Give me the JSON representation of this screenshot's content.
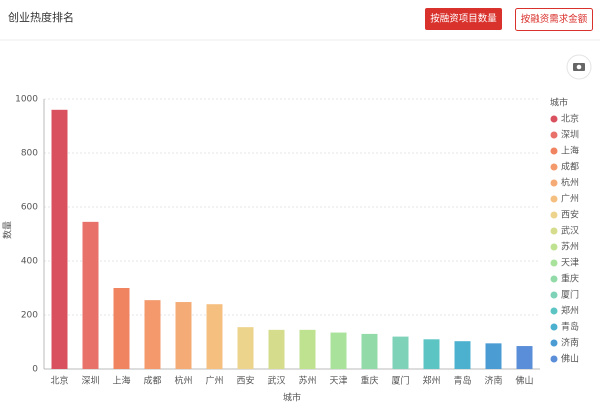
{
  "header": {
    "title": "创业热度排名",
    "buttons": [
      "按融资项目数量",
      "按融资需求金额"
    ]
  },
  "chart_data": {
    "type": "bar",
    "xlabel": "城市",
    "ylabel": "数量",
    "legend_title": "城市",
    "categories": [
      "北京",
      "深圳",
      "上海",
      "成都",
      "杭州",
      "广州",
      "西安",
      "武汉",
      "苏州",
      "天津",
      "重庆",
      "厦门",
      "郑州",
      "青岛",
      "济南",
      "佛山"
    ],
    "values": [
      960,
      545,
      300,
      255,
      248,
      240,
      155,
      145,
      145,
      135,
      130,
      120,
      110,
      103,
      95,
      85
    ],
    "colors": [
      "#d9505e",
      "#e8716a",
      "#f08360",
      "#f3996c",
      "#f5ab76",
      "#f5bf80",
      "#edd48c",
      "#d5dc8c",
      "#bfe290",
      "#a8e29b",
      "#92dba8",
      "#7dd2b7",
      "#5cc5c4",
      "#4cb0cf",
      "#4a9cd3",
      "#5b8ed8"
    ],
    "ylim": [
      0,
      1000
    ],
    "yticks": [
      0,
      200,
      400,
      600,
      800,
      1000
    ],
    "grid": true,
    "legend": "right"
  }
}
